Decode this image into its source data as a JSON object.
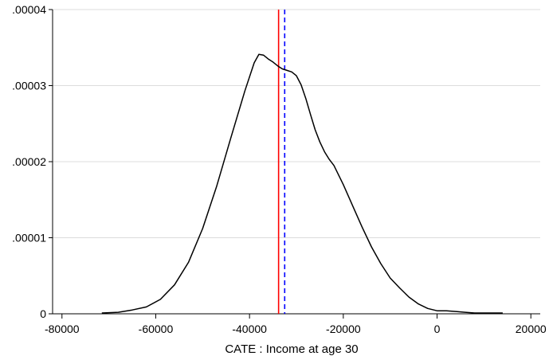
{
  "chart_data": {
    "type": "line",
    "xlabel": "CATE : Income at age 30",
    "ylabel": "",
    "xlim": [
      -82000,
      22000
    ],
    "ylim": [
      0,
      4e-05
    ],
    "x_ticks": [
      {
        "value": -80000,
        "label": "-80000"
      },
      {
        "value": -60000,
        "label": "-60000"
      },
      {
        "value": -40000,
        "label": "-40000"
      },
      {
        "value": -20000,
        "label": "-20000"
      },
      {
        "value": 0,
        "label": "0"
      },
      {
        "value": 20000,
        "label": "20000"
      }
    ],
    "y_ticks": [
      {
        "value": 0,
        "label": "0"
      },
      {
        "value": 1e-05,
        "label": ".00001"
      },
      {
        "value": 2e-05,
        "label": ".00002"
      },
      {
        "value": 3e-05,
        "label": ".00003"
      },
      {
        "value": 4e-05,
        "label": ".00004"
      }
    ],
    "grid": "horizontal",
    "series": [
      {
        "color": "#000000",
        "x": [
          -71500,
          -68000,
          -65000,
          -62000,
          -59000,
          -56000,
          -53000,
          -50000,
          -47000,
          -44000,
          -41000,
          -39000,
          -38000,
          -37000,
          -36000,
          -35000,
          -34000,
          -33000,
          -32000,
          -31000,
          -30000,
          -29000,
          -28000,
          -27000,
          -26000,
          -25000,
          -24000,
          -23000,
          -22000,
          -20000,
          -18000,
          -16000,
          -14000,
          -12000,
          -10000,
          -8000,
          -6000,
          -4000,
          -2000,
          0,
          2000,
          4000,
          6000,
          8000,
          10000,
          12000,
          14000
        ],
        "y": [
          1e-07,
          2e-07,
          5e-07,
          9e-07,
          1.9e-06,
          3.8e-06,
          6.8e-06,
          1.12e-05,
          1.68e-05,
          2.31e-05,
          2.93e-05,
          3.3e-05,
          3.41e-05,
          3.4e-05,
          3.35e-05,
          3.31e-05,
          3.26e-05,
          3.22e-05,
          3.2e-05,
          3.18e-05,
          3.13e-05,
          3.01e-05,
          2.83e-05,
          2.62e-05,
          2.42e-05,
          2.26e-05,
          2.13e-05,
          2.03e-05,
          1.95e-05,
          1.7e-05,
          1.42e-05,
          1.14e-05,
          8.8e-06,
          6.6e-06,
          4.7e-06,
          3.4e-06,
          2.2e-06,
          1.3e-06,
          7e-07,
          4e-07,
          4e-07,
          3e-07,
          2e-07,
          1e-07,
          1e-07,
          1e-07,
          1e-07
        ]
      }
    ],
    "vertical_lines": [
      {
        "x": -33800,
        "color": "#ff0000",
        "style": "solid"
      },
      {
        "x": -32500,
        "color": "#0000ff",
        "style": "dashed"
      }
    ]
  }
}
